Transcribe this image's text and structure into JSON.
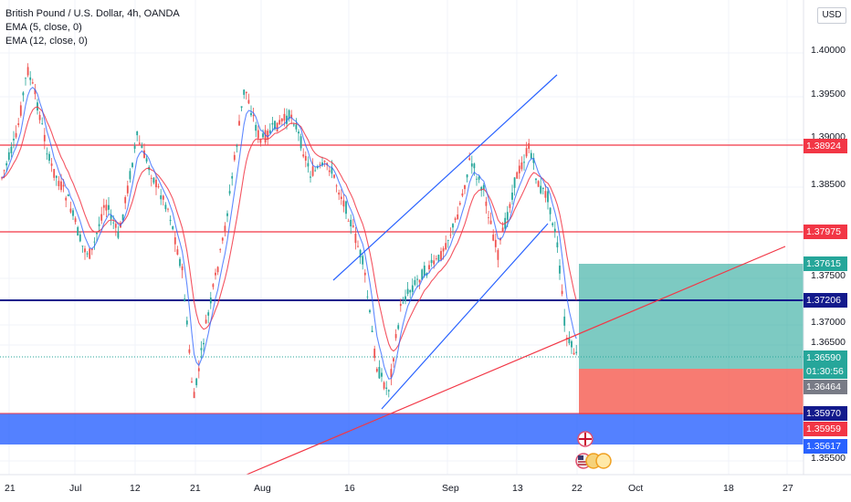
{
  "legend": {
    "title": "British Pound / U.S. Dollar, 4h, OANDA",
    "ema1": "EMA (5, close, 0)",
    "ema2": "EMA (12, close, 0)"
  },
  "currency_badge": "USD",
  "price_axis": {
    "ticks": [
      "1.40000",
      "1.39500",
      "1.39000",
      "1.38500",
      "1.37500",
      "1.37000",
      "1.36500",
      "1.35500"
    ]
  },
  "time_axis": {
    "ticks": [
      "21",
      "Jul",
      "12",
      "21",
      "Aug",
      "16",
      "Sep",
      "13",
      "22",
      "Oct",
      "18",
      "27"
    ]
  },
  "price_tags": {
    "h1": "1.38924",
    "h2": "1.37975",
    "tp": "1.37615",
    "h3": "1.37206",
    "current": "1.36590",
    "countdown": "01:30:56",
    "entry": "1.36464",
    "zone_top": "1.35970",
    "stop": "1.35959",
    "zone_bottom": "1.35617"
  },
  "colors": {
    "red_line": "#f23645",
    "navy_line": "#131a8c",
    "blue_zone": "#2962ff",
    "profit_zone": "#26a69a",
    "loss_zone": "#f44336",
    "ema_fast": "#2962ff",
    "ema_slow": "#f23645"
  }
}
